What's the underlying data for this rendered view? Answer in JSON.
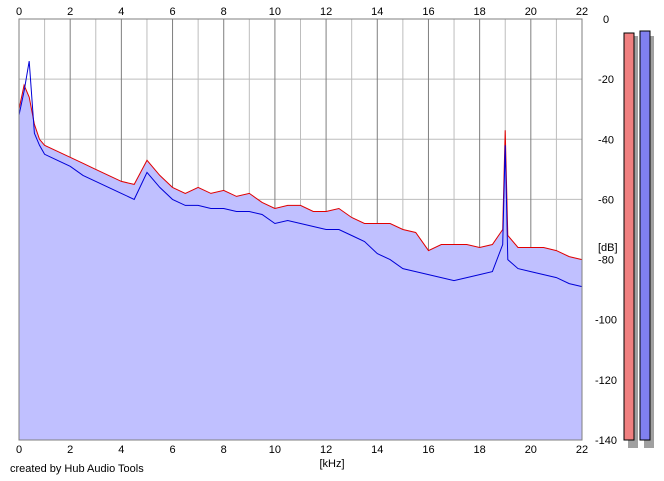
{
  "credit": "created by Hub Audio Tools",
  "colors": {
    "plot_bg": "#ffffff",
    "grid_major": "#7f7f7f",
    "grid_minor": "#bdbdbd",
    "fill": "#c0c0ff",
    "left_channel": "#e00000",
    "right_channel": "#0000d8",
    "meter_left_fill": "#f08080",
    "meter_right_fill": "#8080f0",
    "meter_shadow": "#a0a0a0"
  },
  "chart_data": {
    "type": "line",
    "x_unit_label": "[kHz]",
    "y_unit_label": "[dB]",
    "xlim": [
      0,
      22
    ],
    "ylim": [
      -140,
      0
    ],
    "x_ticks": [
      0,
      2,
      4,
      6,
      8,
      10,
      12,
      14,
      16,
      18,
      20,
      22
    ],
    "y_ticks": [
      0,
      -20,
      -40,
      -60,
      -80,
      -100,
      -120,
      -140
    ],
    "grid": true,
    "series": [
      {
        "channel": "left",
        "color": "#e00000",
        "x": [
          0,
          0.2,
          0.4,
          0.6,
          0.8,
          1,
          1.5,
          2,
          2.5,
          3,
          3.5,
          4,
          4.5,
          5,
          5.5,
          6,
          6.5,
          7,
          7.5,
          8,
          8.5,
          9,
          9.5,
          10,
          10.5,
          11,
          11.5,
          12,
          12.5,
          13,
          13.5,
          14,
          14.5,
          15,
          15.5,
          16,
          16.5,
          17,
          17.5,
          18,
          18.5,
          18.9,
          19,
          19.1,
          19.5,
          20,
          20.5,
          21,
          21.5,
          22
        ],
        "values": [
          -30,
          -22,
          -26,
          -35,
          -40,
          -42,
          -44,
          -46,
          -48,
          -50,
          -52,
          -54,
          -55,
          -47,
          -52,
          -56,
          -58,
          -56,
          -58,
          -57,
          -59,
          -58,
          -61,
          -63,
          -62,
          -62,
          -64,
          -64,
          -63,
          -66,
          -68,
          -68,
          -68,
          -70,
          -71,
          -77,
          -75,
          -75,
          -75,
          -76,
          -75,
          -70,
          -37,
          -72,
          -76,
          -76,
          -76,
          -77,
          -79,
          -80
        ]
      },
      {
        "channel": "right",
        "color": "#0000d8",
        "x": [
          0,
          0.2,
          0.4,
          0.6,
          0.8,
          1,
          1.5,
          2,
          2.5,
          3,
          3.5,
          4,
          4.5,
          5,
          5.5,
          6,
          6.5,
          7,
          7.5,
          8,
          8.5,
          9,
          9.5,
          10,
          10.5,
          11,
          11.5,
          12,
          12.5,
          13,
          13.5,
          14,
          14.5,
          15,
          15.5,
          16,
          16.5,
          17,
          17.5,
          18,
          18.5,
          18.9,
          19,
          19.1,
          19.5,
          20,
          20.5,
          21,
          21.5,
          22
        ],
        "values": [
          -32,
          -24,
          -14,
          -38,
          -42,
          -45,
          -47,
          -49,
          -52,
          -54,
          -56,
          -58,
          -60,
          -51,
          -56,
          -60,
          -62,
          -62,
          -63,
          -63,
          -64,
          -64,
          -65,
          -68,
          -67,
          -68,
          -69,
          -70,
          -70,
          -72,
          -74,
          -78,
          -80,
          -83,
          -84,
          -85,
          -86,
          -87,
          -86,
          -85,
          -84,
          -75,
          -42,
          -80,
          -83,
          -84,
          -85,
          -86,
          -88,
          -89
        ]
      }
    ]
  },
  "meters": {
    "left_level_db": -4,
    "right_level_db": -4
  }
}
